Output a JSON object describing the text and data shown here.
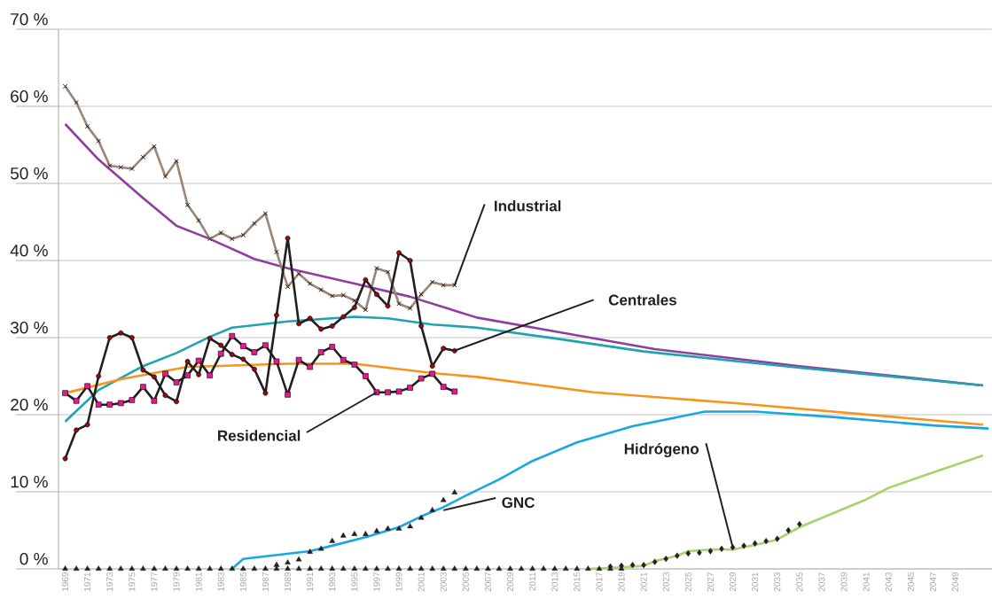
{
  "chart_data": {
    "type": "line",
    "xlim": [
      1968.4,
      2052.3
    ],
    "xticks": [
      1969,
      1971,
      1973,
      1975,
      1977,
      1979,
      1981,
      1983,
      1985,
      1987,
      1989,
      1991,
      1993,
      1995,
      1997,
      1999,
      2001,
      2003,
      2005,
      2007,
      2009,
      2011,
      2013,
      2015,
      2017,
      2019,
      2021,
      2023,
      2025,
      2027,
      2029,
      2031,
      2033,
      2035,
      2037,
      2039,
      2041,
      2043,
      2045,
      2047,
      2049
    ],
    "ylim": [
      0,
      70
    ],
    "yticks": [
      {
        "value": 0,
        "label": "0 %"
      },
      {
        "value": 10,
        "label": "10 %"
      },
      {
        "value": 20,
        "label": "20 %"
      },
      {
        "value": 30,
        "label": "30 %"
      },
      {
        "value": 40,
        "label": "40 %"
      },
      {
        "value": 50,
        "label": "50 %"
      },
      {
        "value": 60,
        "label": "60 %"
      },
      {
        "value": 70,
        "label": "70 %"
      }
    ],
    "grid": "y",
    "series": [
      {
        "color": "#8e3f9e",
        "x": [
          1969,
          1972,
          1976,
          1979,
          1982,
          1986,
          1989,
          1995,
          2000,
          2006,
          2013,
          2022,
          2035,
          2051.5
        ],
        "values": [
          57.7,
          53.1,
          48.1,
          44.5,
          42.8,
          40.2,
          39.0,
          37.0,
          35.3,
          32.6,
          30.8,
          28.5,
          26.3,
          23.8
        ]
      },
      {
        "color": "#1fa3b0",
        "x": [
          1969,
          1972,
          1976,
          1979,
          1982,
          1984,
          1986,
          1989,
          1995,
          1998,
          2002,
          2006,
          2013,
          2021,
          2035,
          2051.5
        ],
        "values": [
          19.1,
          23.2,
          26.3,
          28.0,
          30.1,
          31.3,
          31.6,
          32.1,
          32.7,
          32.5,
          31.7,
          31.3,
          29.9,
          28.2,
          26.1,
          23.8
        ]
      },
      {
        "color": "#f7941d",
        "x": [
          1969,
          1974,
          1980,
          1989,
          1995,
          2002,
          2006,
          2016.5,
          2030,
          2051.5
        ],
        "values": [
          22.8,
          24.6,
          26.2,
          26.6,
          26.6,
          25.4,
          24.9,
          22.9,
          21.4,
          18.7
        ]
      },
      {
        "color": "#1aa7e1",
        "x": [
          1984,
          1985,
          1991,
          1993,
          1996,
          1999,
          2001,
          2003,
          2005,
          2008,
          2011,
          2015,
          2020,
          2026.5,
          2031,
          2038,
          2047,
          2052
        ],
        "values": [
          0,
          1.3,
          2.3,
          3.0,
          4.1,
          5.4,
          6.8,
          8.0,
          9.5,
          11.6,
          14.0,
          16.4,
          18.5,
          20.4,
          20.4,
          19.7,
          18.6,
          18.2
        ]
      },
      {
        "color": "#a6d36b",
        "x": [
          2016,
          2019,
          2021,
          2022,
          2024,
          2025,
          2027,
          2029,
          2031,
          2033,
          2035,
          2037,
          2041,
          2043,
          2046,
          2051.5
        ],
        "values": [
          0,
          0.2,
          0.4,
          1.0,
          1.7,
          2.3,
          2.5,
          2.5,
          3.1,
          3.8,
          5.4,
          6.6,
          9.0,
          10.5,
          12.0,
          14.7
        ]
      },
      {
        "color": "#9b8575",
        "marker": "cross",
        "x": [
          1969,
          1970,
          1971,
          1972,
          1973,
          1974,
          1975,
          1976,
          1977,
          1978,
          1979,
          1980,
          1981,
          1982,
          1983,
          1984,
          1985,
          1986,
          1987,
          1988,
          1989,
          1990,
          1991,
          1992,
          1993,
          1994,
          1995,
          1996,
          1997,
          1998,
          1999,
          2000,
          2001,
          2002,
          2003,
          2004
        ],
        "values": [
          62.6,
          60.5,
          57.4,
          55.5,
          52.3,
          52.1,
          51.9,
          53.4,
          54.8,
          50.9,
          52.9,
          47.2,
          45.2,
          42.8,
          43.6,
          42.8,
          43.3,
          44.8,
          46.1,
          41.1,
          36.6,
          38.3,
          37.0,
          36.2,
          35.4,
          35.5,
          34.8,
          33.6,
          39.0,
          38.5,
          34.4,
          33.8,
          35.6,
          37.2,
          36.8,
          36.8
        ],
        "colors": [
          "#231f20",
          "#231f20",
          "#231f20",
          "#231f20",
          "#231f20",
          "#231f20",
          "#231f20",
          "#231f20",
          "#231f20",
          "#231f20",
          "#231f20",
          "#231f20",
          "#231f20",
          "#231f20",
          "#231f20",
          "#231f20",
          "#231f20",
          "#231f20",
          "#231f20",
          "#231f20",
          "#231f20",
          "#231f20",
          "#231f20",
          "#231f20",
          "#231f20",
          "#231f20",
          "#231f20",
          "#231f20",
          "#231f20",
          "#231f20",
          "#231f20",
          "#231f20",
          "#231f20",
          "#231f20",
          "#231f20",
          "#231f20"
        ]
      },
      {
        "color": "#231f20",
        "marker": "square",
        "x": [
          1969,
          1970,
          1971,
          1972,
          1973,
          1974,
          1975,
          1976,
          1977,
          1978,
          1979,
          1980,
          1981,
          1982,
          1983,
          1984,
          1985,
          1986,
          1987,
          1988,
          1989,
          1990,
          1991,
          1992,
          1993,
          1994,
          1995,
          1996,
          1997,
          1998,
          1999,
          2000,
          2001,
          2002,
          2003,
          2004
        ],
        "values": [
          22.8,
          21.8,
          23.7,
          21.3,
          21.3,
          21.5,
          21.9,
          23.6,
          21.8,
          25.3,
          24.2,
          25.1,
          27.0,
          25.1,
          27.9,
          30.2,
          28.9,
          28.1,
          29.0,
          26.9,
          22.6,
          27.1,
          26.2,
          28.1,
          28.8,
          27.1,
          26.5,
          25.0,
          22.9,
          22.9,
          23.0,
          23.5,
          24.7,
          25.3,
          23.6,
          23.0
        ],
        "colors": [
          "#e6198c",
          "#e6198c",
          "#e6198c",
          "#e6198c",
          "#e6198c",
          "#e6198c",
          "#e6198c",
          "#e6198c",
          "#e6198c",
          "#e6198c",
          "#e6198c",
          "#e6198c",
          "#e6198c",
          "#e6198c",
          "#e6198c",
          "#e6198c",
          "#e6198c",
          "#e6198c",
          "#e6198c",
          "#e6198c",
          "#e6198c",
          "#e6198c",
          "#e6198c",
          "#e6198c",
          "#e6198c",
          "#e6198c",
          "#e6198c",
          "#e6198c",
          "#e6198c",
          "#e6198c",
          "#e6198c",
          "#e6198c",
          "#e6198c",
          "#e6198c",
          "#e6198c",
          "#e6198c"
        ]
      },
      {
        "color": "#231f20",
        "marker": "circle",
        "x": [
          1969,
          1970,
          1971,
          1972,
          1973,
          1974,
          1975,
          1976,
          1977,
          1978,
          1979,
          1980,
          1981,
          1982,
          1983,
          1984,
          1985,
          1986,
          1987,
          1988,
          1989,
          1990,
          1991,
          1992,
          1993,
          1994,
          1995,
          1996,
          1997,
          1998,
          1999,
          2000,
          2001,
          2002,
          2003,
          2004
        ],
        "values": [
          14.3,
          18.0,
          18.7,
          25.0,
          30.0,
          30.6,
          30.0,
          25.8,
          24.9,
          22.5,
          21.7,
          26.9,
          25.2,
          29.9,
          29.0,
          27.8,
          27.2,
          25.9,
          22.8,
          32.9,
          42.9,
          31.8,
          32.5,
          31.1,
          31.5,
          32.7,
          33.9,
          37.5,
          35.6,
          34.1,
          41.0,
          40.0,
          31.5,
          26.3,
          28.6,
          28.3
        ],
        "colors": [
          "#8b1010",
          "#8b1010",
          "#8b1010",
          "#8b1010",
          "#8b1010",
          "#8b1010",
          "#8b1010",
          "#8b1010",
          "#8b1010",
          "#8b1010",
          "#8b1010",
          "#8b1010",
          "#8b1010",
          "#8b1010",
          "#8b1010",
          "#8b1010",
          "#8b1010",
          "#8b1010",
          "#8b1010",
          "#8b1010",
          "#8b1010",
          "#8b1010",
          "#8b1010",
          "#8b1010",
          "#8b1010",
          "#8b1010",
          "#8b1010",
          "#8b1010",
          "#8b1010",
          "#8b1010",
          "#8b1010",
          "#8b1010",
          "#8b1010",
          "#8b1010",
          "#8b1010",
          "#8b1010"
        ]
      },
      {
        "type": "scatter",
        "color": "#231f20",
        "marker": "triangle",
        "x": [
          1969,
          1970,
          1971,
          1972,
          1973,
          1974,
          1975,
          1976,
          1977,
          1978,
          1979,
          1980,
          1981,
          1982,
          1983,
          1984,
          1985,
          1986,
          1987,
          1988,
          1989,
          1990,
          1991,
          1992,
          1993,
          1994,
          1995,
          1996,
          1997,
          1998,
          1999,
          2000,
          2001,
          2002,
          2003,
          2004,
          2005,
          2006,
          2007,
          2008,
          2009,
          2010,
          2011,
          2012,
          2013,
          2014,
          2015,
          2016,
          2017,
          2018,
          2019
        ],
        "values": [
          0,
          0,
          0,
          0,
          0,
          0,
          0,
          0,
          0,
          0,
          0,
          0,
          0,
          0,
          0,
          0,
          0,
          0,
          0,
          0,
          0,
          0,
          0,
          0,
          0,
          0,
          0,
          0,
          0,
          0,
          0,
          0,
          0,
          0,
          0,
          0,
          0,
          0,
          0,
          0,
          0,
          0,
          0,
          0,
          0,
          0,
          0,
          0,
          0,
          0,
          0
        ]
      },
      {
        "type": "scatter",
        "color": "#231f20",
        "marker": "triangle",
        "x": [
          1988,
          1989,
          1990,
          1991,
          1992,
          1993,
          1994,
          1995,
          1996,
          1997,
          1998,
          1999,
          2000,
          2001,
          2002,
          2003,
          2004
        ],
        "values": [
          0.5,
          0.8,
          1.2,
          2.2,
          2.6,
          3.6,
          4.3,
          4.5,
          4.5,
          4.9,
          5.2,
          5.2,
          5.5,
          6.6,
          7.6,
          8.9,
          9.9
        ]
      },
      {
        "type": "scatter",
        "color": "#231f20",
        "marker": "diamond",
        "x": [
          2018,
          2019,
          2020,
          2021,
          2022,
          2023,
          2024,
          2025,
          2026,
          2027,
          2028,
          2029,
          2030,
          2031,
          2032,
          2033,
          2034,
          2035
        ],
        "values": [
          0.3,
          0.4,
          0.5,
          0.5,
          0.9,
          1.3,
          1.7,
          2.0,
          2.1,
          2.3,
          2.6,
          2.8,
          3.0,
          3.3,
          3.6,
          3.9,
          5.0,
          5.8
        ]
      }
    ],
    "annotations": [
      {
        "text": "Industrial",
        "x": 2004,
        "y": 36.8
      },
      {
        "text": "Centrales",
        "x": 2004,
        "y": 28.3
      },
      {
        "text": "Residencial",
        "x": 1997,
        "y": 22.9
      },
      {
        "text": "GNC",
        "x": 2003,
        "y": 7.6
      },
      {
        "text": "Hidrógeno",
        "x": 2029,
        "y": 2.8
      }
    ]
  }
}
